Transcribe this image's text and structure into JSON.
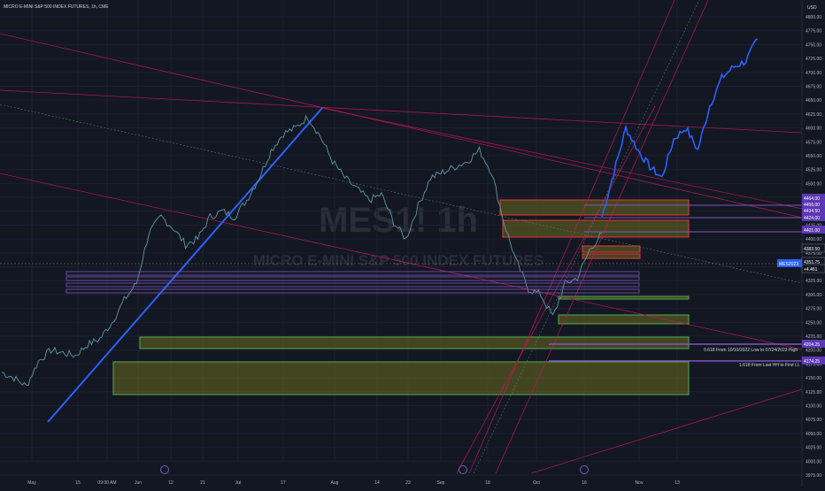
{
  "header": {
    "title": "MICRO E-MINI S&P 500 INDEX FUTURES, 1h, CME",
    "currency": "USD"
  },
  "watermark": {
    "symbol": "MES1! 1h",
    "name": "MICRO E-MINI S&P 500 INDEX FUTURES"
  },
  "colors": {
    "background": "#131722",
    "price_line": "#5b9aa8",
    "projection_line": "#2962ff",
    "trend_line": "#c2185b",
    "zone_fill": "#6b6b1f",
    "zone_border_green": "#4caf50",
    "zone_border_red": "#e53935",
    "purple_level": "#7e57c2"
  },
  "price_tags": [
    {
      "label": "4464.00",
      "color": "#5c38b5"
    },
    {
      "label": "4456.00",
      "color": "#5c38b5"
    },
    {
      "label": "4434.50",
      "color": "#5c38b5"
    },
    {
      "label": "4424.00",
      "color": "#5c38b5"
    },
    {
      "label": "4401.00",
      "color": "#5c38b5"
    },
    {
      "label": "4383.50",
      "color": "#d1d4dc"
    },
    {
      "label": "4351.75",
      "color": "#d1d4dc"
    },
    {
      "label": "+4.461",
      "color": "#d1d4dc"
    },
    {
      "label": "4204.25",
      "color": "#5c38b5"
    },
    {
      "label": "4174.25",
      "color": "#5c38b5"
    }
  ],
  "current_symbol_tag": "MES2023",
  "annotations": {
    "fib_618": "0.618 From 10/10/2022 Low to 07/24/2023 High",
    "fib_1618": "1.618 From Last HH to First LL"
  },
  "chart_data": {
    "type": "line",
    "title": "MICRO E-MINI S&P 500 INDEX FUTURES, 1h, CME",
    "xlabel": "",
    "ylabel": "",
    "ylim": [
      3975,
      4800
    ],
    "y_ticks": [
      "4800.00",
      "4775.00",
      "4750.00",
      "4725.00",
      "4700.00",
      "4675.00",
      "4650.00",
      "4625.00",
      "4600.00",
      "4575.00",
      "4550.00",
      "4525.00",
      "4500.00",
      "4475.00",
      "4450.00",
      "4425.00",
      "4400.00",
      "4375.00",
      "4350.00",
      "4325.00",
      "4300.00",
      "4275.00",
      "4250.00",
      "4225.00",
      "4200.00",
      "4175.00",
      "4150.00",
      "4125.00",
      "4100.00",
      "4075.00",
      "4050.00",
      "4025.00",
      "4000.00",
      "3975.00"
    ],
    "x_ticks": [
      "May",
      "15",
      "09:00 AM",
      "Jun",
      "12",
      "21",
      "Jul",
      "17",
      "Aug",
      "14",
      "23",
      "Sep",
      "18",
      "Oct",
      "16",
      "Nov",
      "13"
    ],
    "series": [
      {
        "x": [
          "May 1",
          "May 4",
          "May 8",
          "May 11",
          "May 15",
          "May 18",
          "May 22",
          "May 25",
          "May 29",
          "Jun 1",
          "Jun 5",
          "Jun 8",
          "Jun 12",
          "Jun 15",
          "Jun 19",
          "Jun 22",
          "Jun 26",
          "Jun 29",
          "Jul 3",
          "Jul 6",
          "Jul 10",
          "Jul 13",
          "Jul 17",
          "Jul 20",
          "Jul 24",
          "Jul 27",
          "Jul 31",
          "Aug 3",
          "Aug 7",
          "Aug 10",
          "Aug 14",
          "Aug 17",
          "Aug 21",
          "Aug 24",
          "Aug 28",
          "Aug 31",
          "Sep 4",
          "Sep 7",
          "Sep 11",
          "Sep 14",
          "Sep 18",
          "Sep 21",
          "Sep 25",
          "Sep 28",
          "Oct 2",
          "Oct 5",
          "Oct 9",
          "Oct 12",
          "Oct 16",
          "Oct 19"
        ],
        "values": [
          4160,
          4150,
          4135,
          4180,
          4200,
          4195,
          4190,
          4210,
          4220,
          4250,
          4290,
          4320,
          4410,
          4440,
          4420,
          4390,
          4400,
          4440,
          4450,
          4440,
          4470,
          4510,
          4560,
          4590,
          4600,
          4620,
          4585,
          4540,
          4510,
          4490,
          4470,
          4480,
          4430,
          4400,
          4460,
          4510,
          4520,
          4530,
          4540,
          4560,
          4520,
          4430,
          4360,
          4310,
          4300,
          4260,
          4320,
          4330,
          4380,
          4410
        ]
      },
      {
        "x": [
          "Oct 19",
          "Oct 23",
          "Oct 26",
          "Oct 30",
          "Nov 2",
          "Nov 6",
          "Nov 9",
          "Nov 13",
          "Nov 16",
          "Nov 20",
          "Nov 23",
          "Nov 27",
          "Nov 30",
          "Dec 4"
        ],
        "values": [
          4440,
          4520,
          4600,
          4560,
          4530,
          4510,
          4580,
          4600,
          4560,
          4640,
          4690,
          4710,
          4720,
          4760
        ]
      }
    ],
    "grid": true,
    "legend": "none"
  }
}
